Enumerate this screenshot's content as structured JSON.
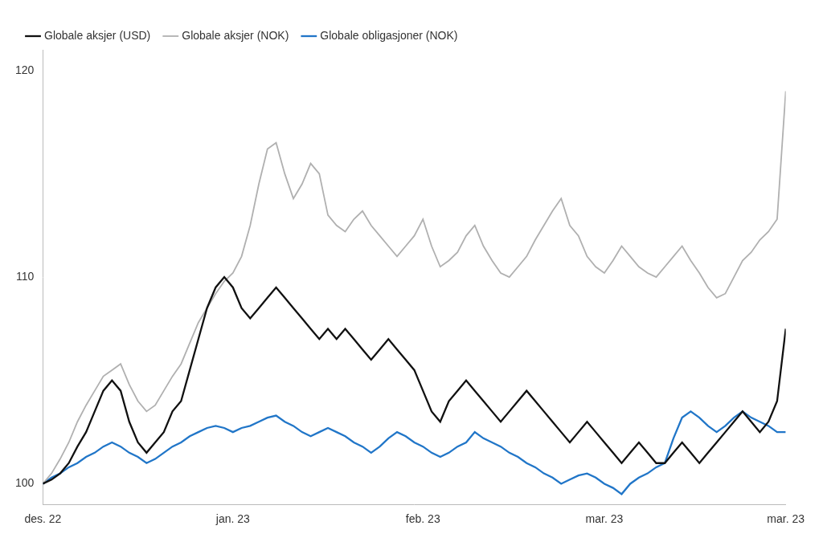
{
  "chart_data": {
    "type": "line",
    "categories": [
      "des. 22",
      null,
      null,
      null,
      null,
      null,
      null,
      null,
      null,
      null,
      null,
      null,
      null,
      null,
      null,
      null,
      null,
      null,
      null,
      null,
      null,
      null,
      "jan. 23",
      null,
      null,
      null,
      null,
      null,
      null,
      null,
      null,
      null,
      null,
      null,
      null,
      null,
      null,
      null,
      null,
      null,
      null,
      null,
      null,
      null,
      "feb. 23",
      null,
      null,
      null,
      null,
      null,
      null,
      null,
      null,
      null,
      null,
      null,
      null,
      null,
      null,
      null,
      null,
      null,
      null,
      null,
      null,
      "mar. 23",
      null,
      null,
      null,
      null,
      null,
      null,
      null,
      null,
      null,
      null,
      null,
      null,
      null,
      null,
      null,
      null,
      null,
      null,
      null,
      null,
      "mar. 23"
    ],
    "series": [
      {
        "name": "Globale aksjer (NOK)",
        "color": "#b0b0b0",
        "values": [
          100.0,
          100.5,
          101.2,
          102.0,
          103.0,
          103.8,
          104.5,
          105.2,
          105.5,
          105.8,
          104.8,
          104.0,
          103.5,
          103.8,
          104.5,
          105.2,
          105.8,
          106.8,
          107.8,
          108.5,
          109.2,
          109.8,
          110.2,
          111.0,
          112.5,
          114.5,
          116.2,
          116.5,
          115.0,
          113.8,
          114.5,
          115.5,
          115.0,
          113.0,
          112.5,
          112.2,
          112.8,
          113.2,
          112.5,
          112.0,
          111.5,
          111.0,
          111.5,
          112.0,
          112.8,
          111.5,
          110.5,
          110.8,
          111.2,
          112.0,
          112.5,
          111.5,
          110.8,
          110.2,
          110.0,
          110.5,
          111.0,
          111.8,
          112.5,
          113.2,
          113.8,
          112.5,
          112.0,
          111.0,
          110.5,
          110.2,
          110.8,
          111.5,
          111.0,
          110.5,
          110.2,
          110.0,
          110.5,
          111.0,
          111.5,
          110.8,
          110.2,
          109.5,
          109.0,
          109.2,
          110.0,
          110.8,
          111.2,
          111.8,
          112.2,
          112.8,
          119.0
        ]
      },
      {
        "name": "Globale aksjer (USD)",
        "color": "#111111",
        "values": [
          100.0,
          100.2,
          100.5,
          101.0,
          101.8,
          102.5,
          103.5,
          104.5,
          105.0,
          104.5,
          103.0,
          102.0,
          101.5,
          102.0,
          102.5,
          103.5,
          104.0,
          105.5,
          107.0,
          108.5,
          109.5,
          110.0,
          109.5,
          108.5,
          108.0,
          108.5,
          109.0,
          109.5,
          109.0,
          108.5,
          108.0,
          107.5,
          107.0,
          107.5,
          107.0,
          107.5,
          107.0,
          106.5,
          106.0,
          106.5,
          107.0,
          106.5,
          106.0,
          105.5,
          104.5,
          103.5,
          103.0,
          104.0,
          104.5,
          105.0,
          104.5,
          104.0,
          103.5,
          103.0,
          103.5,
          104.0,
          104.5,
          104.0,
          103.5,
          103.0,
          102.5,
          102.0,
          102.5,
          103.0,
          102.5,
          102.0,
          101.5,
          101.0,
          101.5,
          102.0,
          101.5,
          101.0,
          101.0,
          101.5,
          102.0,
          101.5,
          101.0,
          101.5,
          102.0,
          102.5,
          103.0,
          103.5,
          103.0,
          102.5,
          103.0,
          104.0,
          107.5
        ]
      },
      {
        "name": "Globale obligasjoner (NOK)",
        "color": "#2176c8",
        "values": [
          100.0,
          100.3,
          100.5,
          100.8,
          101.0,
          101.3,
          101.5,
          101.8,
          102.0,
          101.8,
          101.5,
          101.3,
          101.0,
          101.2,
          101.5,
          101.8,
          102.0,
          102.3,
          102.5,
          102.7,
          102.8,
          102.7,
          102.5,
          102.7,
          102.8,
          103.0,
          103.2,
          103.3,
          103.0,
          102.8,
          102.5,
          102.3,
          102.5,
          102.7,
          102.5,
          102.3,
          102.0,
          101.8,
          101.5,
          101.8,
          102.2,
          102.5,
          102.3,
          102.0,
          101.8,
          101.5,
          101.3,
          101.5,
          101.8,
          102.0,
          102.5,
          102.2,
          102.0,
          101.8,
          101.5,
          101.3,
          101.0,
          100.8,
          100.5,
          100.3,
          100.0,
          100.2,
          100.4,
          100.5,
          100.3,
          100.0,
          99.8,
          99.5,
          100.0,
          100.3,
          100.5,
          100.8,
          101.0,
          102.2,
          103.2,
          103.5,
          103.2,
          102.8,
          102.5,
          102.8,
          103.2,
          103.5,
          103.2,
          103.0,
          102.8,
          102.5,
          102.5
        ]
      }
    ],
    "ylim": [
      99.0,
      121.0
    ],
    "yticks": [
      100,
      110,
      120
    ],
    "grid": false,
    "legend": "upper left"
  }
}
